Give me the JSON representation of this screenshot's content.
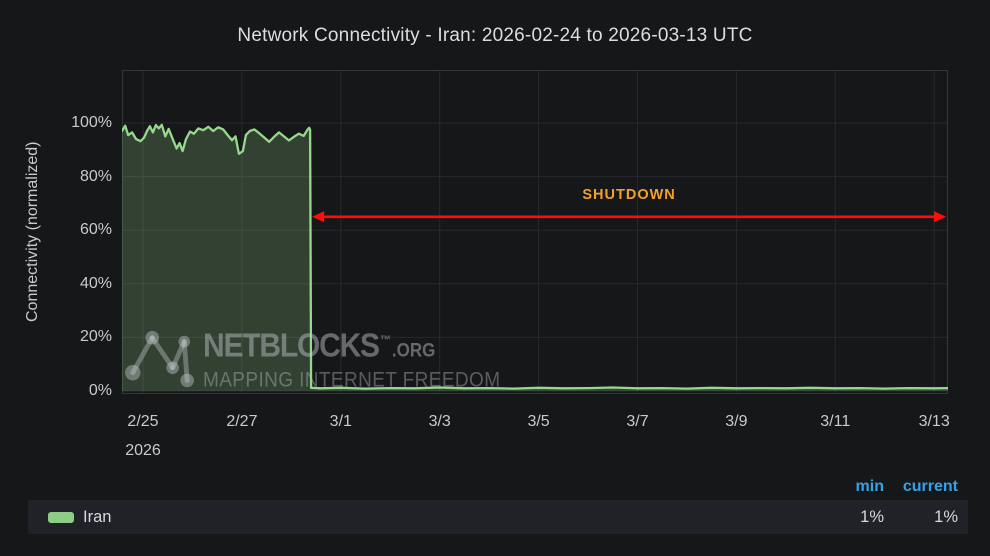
{
  "chart_data": {
    "type": "area",
    "title": "Network Connectivity - Iran: 2026-02-24 to 2026-03-13 UTC",
    "ylabel": "Connectivity (normalized)",
    "ylim": [
      0,
      100
    ],
    "grid": true,
    "ytick_values": [
      0,
      20,
      40,
      60,
      80,
      100
    ],
    "ytick_labels": [
      "0%",
      "20%",
      "40%",
      "60%",
      "80%",
      "100%"
    ],
    "xtick_labels": [
      "2/25",
      "2/27",
      "3/1",
      "3/3",
      "3/5",
      "3/7",
      "3/9",
      "3/11",
      "3/13"
    ],
    "xtick_days": [
      1,
      3,
      5,
      7,
      9,
      11,
      13,
      15,
      17
    ],
    "x_unit": "days since 2026-02-24 00:00 UTC",
    "x_range_days": [
      0.575,
      17.28
    ],
    "year_label": "2026",
    "series": [
      {
        "name": "Iran",
        "color": "#96d98d",
        "fill": "rgba(150,217,141,0.22)",
        "points": [
          [
            0.575,
            97.0
          ],
          [
            0.64,
            99.0
          ],
          [
            0.7,
            95.5
          ],
          [
            0.78,
            96.5
          ],
          [
            0.86,
            94.0
          ],
          [
            0.95,
            93.2
          ],
          [
            1.02,
            94.5
          ],
          [
            1.08,
            97.0
          ],
          [
            1.14,
            98.8
          ],
          [
            1.2,
            96.5
          ],
          [
            1.26,
            99.2
          ],
          [
            1.32,
            98.0
          ],
          [
            1.38,
            99.3
          ],
          [
            1.45,
            95.0
          ],
          [
            1.52,
            97.8
          ],
          [
            1.6,
            94.0
          ],
          [
            1.68,
            90.5
          ],
          [
            1.74,
            92.5
          ],
          [
            1.8,
            89.5
          ],
          [
            1.87,
            94.0
          ],
          [
            1.95,
            96.8
          ],
          [
            2.03,
            96.0
          ],
          [
            2.12,
            98.0
          ],
          [
            2.22,
            97.3
          ],
          [
            2.32,
            98.6
          ],
          [
            2.42,
            97.0
          ],
          [
            2.52,
            98.4
          ],
          [
            2.62,
            97.6
          ],
          [
            2.72,
            95.3
          ],
          [
            2.8,
            93.6
          ],
          [
            2.87,
            95.0
          ],
          [
            2.94,
            88.5
          ],
          [
            3.02,
            89.5
          ],
          [
            3.08,
            95.5
          ],
          [
            3.16,
            97.0
          ],
          [
            3.25,
            97.6
          ],
          [
            3.35,
            96.2
          ],
          [
            3.45,
            94.6
          ],
          [
            3.55,
            93.0
          ],
          [
            3.65,
            94.8
          ],
          [
            3.75,
            96.5
          ],
          [
            3.85,
            95.0
          ],
          [
            3.95,
            93.5
          ],
          [
            4.05,
            94.8
          ],
          [
            4.15,
            96.0
          ],
          [
            4.25,
            95.2
          ],
          [
            4.33,
            97.6
          ],
          [
            4.36,
            98.2
          ],
          [
            4.38,
            97.5
          ],
          [
            4.4,
            1.2
          ],
          [
            4.6,
            1.0
          ],
          [
            5.0,
            1.2
          ],
          [
            5.5,
            0.9
          ],
          [
            6.0,
            1.1
          ],
          [
            6.5,
            1.0
          ],
          [
            7.0,
            1.3
          ],
          [
            7.5,
            1.0
          ],
          [
            8.0,
            1.1
          ],
          [
            8.5,
            0.9
          ],
          [
            9.0,
            1.2
          ],
          [
            9.5,
            1.0
          ],
          [
            10.0,
            1.1
          ],
          [
            10.5,
            1.3
          ],
          [
            11.0,
            1.0
          ],
          [
            11.5,
            1.1
          ],
          [
            12.0,
            0.9
          ],
          [
            12.5,
            1.2
          ],
          [
            13.0,
            1.0
          ],
          [
            13.5,
            1.1
          ],
          [
            14.0,
            1.0
          ],
          [
            14.5,
            1.2
          ],
          [
            15.0,
            1.0
          ],
          [
            15.5,
            1.1
          ],
          [
            16.0,
            0.9
          ],
          [
            16.5,
            1.1
          ],
          [
            17.0,
            1.0
          ],
          [
            17.28,
            1.1
          ]
        ]
      }
    ],
    "annotation": {
      "label": "SHUTDOWN",
      "label_color": "#f2a12e",
      "arrow_color": "#ff0d0d",
      "start_day": 4.42,
      "end_day": 17.24,
      "y_value": 65
    }
  },
  "watermark": {
    "wordmark": "NETBLOCKS",
    "tm": "™",
    "org": ".ORG",
    "tagline": "MAPPING INTERNET FREEDOM"
  },
  "legend": {
    "columns": [
      "min",
      "current"
    ],
    "series": [
      {
        "label": "Iran",
        "swatch_color": "#8fcd86",
        "min": "1%",
        "current": "1%"
      }
    ]
  },
  "colors": {
    "background": "#161719",
    "grid": "#26292e",
    "plot_border": "#34383d",
    "axis_text": "#c9cad0",
    "title_text": "#dcdde1",
    "legend_header": "#35a2e8",
    "legend_row_bg": "#202227"
  }
}
